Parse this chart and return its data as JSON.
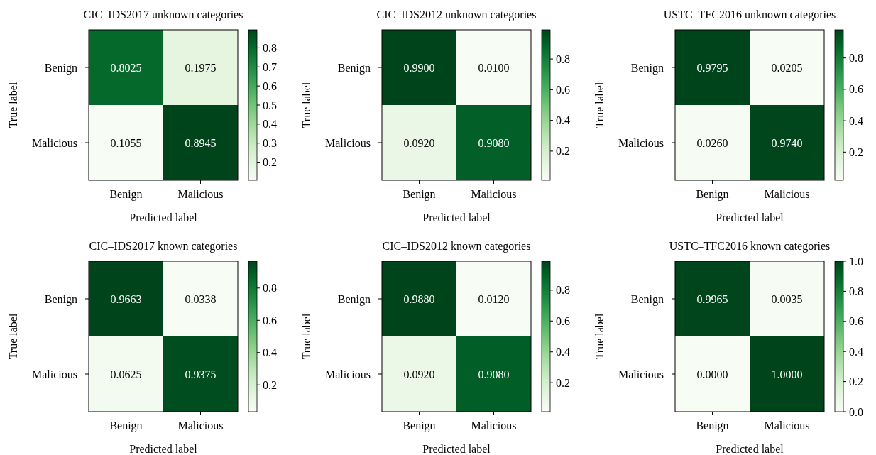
{
  "chart_data": [
    {
      "type": "heatmap",
      "title": "CIC–IDS2017 unknown categories",
      "xlabel": "Predicted label",
      "ylabel": "True label",
      "categories": [
        "Benign",
        "Malicious"
      ],
      "y_categories": [
        "Benign",
        "Malicious"
      ],
      "cells": [
        [
          0.8025,
          0.1975
        ],
        [
          0.1055,
          0.8945
        ]
      ],
      "cell_labels": [
        [
          "0.8025",
          "0.1975"
        ],
        [
          "0.1055",
          "0.8945"
        ]
      ],
      "clim": [
        0.1055,
        0.8945
      ],
      "cticks": [
        0.2,
        0.3,
        0.4,
        0.5,
        0.6,
        0.7,
        0.8
      ]
    },
    {
      "type": "heatmap",
      "title": "CIC–IDS2012 unknown categories",
      "xlabel": "Predicted label",
      "ylabel": "True label",
      "categories": [
        "Benign",
        "Malicious"
      ],
      "y_categories": [
        "Benign",
        "Malicious"
      ],
      "cells": [
        [
          0.99,
          0.01
        ],
        [
          0.092,
          0.908
        ]
      ],
      "cell_labels": [
        [
          "0.9900",
          "0.0100"
        ],
        [
          "0.0920",
          "0.9080"
        ]
      ],
      "clim": [
        0.01,
        0.99
      ],
      "cticks": [
        0.2,
        0.4,
        0.6,
        0.8
      ]
    },
    {
      "type": "heatmap",
      "title": "USTC–TFC2016 unknown categories",
      "xlabel": "Predicted label",
      "ylabel": "True label",
      "categories": [
        "Benign",
        "Malicious"
      ],
      "y_categories": [
        "Benign",
        "Malicious"
      ],
      "cells": [
        [
          0.9795,
          0.0205
        ],
        [
          0.026,
          0.974
        ]
      ],
      "cell_labels": [
        [
          "0.9795",
          "0.0205"
        ],
        [
          "0.0260",
          "0.9740"
        ]
      ],
      "clim": [
        0.0205,
        0.9795
      ],
      "cticks": [
        0.2,
        0.4,
        0.6,
        0.8
      ]
    },
    {
      "type": "heatmap",
      "title": "CIC–IDS2017 known categories",
      "xlabel": "Predicted label",
      "ylabel": "True label",
      "categories": [
        "Benign",
        "Malicious"
      ],
      "y_categories": [
        "Benign",
        "Malicious"
      ],
      "cells": [
        [
          0.9663,
          0.0338
        ],
        [
          0.0625,
          0.9375
        ]
      ],
      "cell_labels": [
        [
          "0.9663",
          "0.0338"
        ],
        [
          "0.0625",
          "0.9375"
        ]
      ],
      "clim": [
        0.0338,
        0.9663
      ],
      "cticks": [
        0.2,
        0.4,
        0.6,
        0.8
      ]
    },
    {
      "type": "heatmap",
      "title": "CIC–IDS2012 known categories",
      "xlabel": "Predicted label",
      "ylabel": "True label",
      "categories": [
        "Benign",
        "Malicious"
      ],
      "y_categories": [
        "Benign",
        "Malicious"
      ],
      "cells": [
        [
          0.988,
          0.012
        ],
        [
          0.092,
          0.908
        ]
      ],
      "cell_labels": [
        [
          "0.9880",
          "0.0120"
        ],
        [
          "0.0920",
          "0.9080"
        ]
      ],
      "clim": [
        0.012,
        0.988
      ],
      "cticks": [
        0.2,
        0.4,
        0.6,
        0.8
      ]
    },
    {
      "type": "heatmap",
      "title": "USTC–TFC2016 known categories",
      "xlabel": "Predicted label",
      "ylabel": "True label",
      "categories": [
        "Benign",
        "Malicious"
      ],
      "y_categories": [
        "Benign",
        "Malicious"
      ],
      "cells": [
        [
          0.9965,
          0.0035
        ],
        [
          0,
          1
        ]
      ],
      "cell_labels": [
        [
          "0.9965",
          "0.0035"
        ],
        [
          "0.0000",
          "1.0000"
        ]
      ],
      "clim": [
        0,
        1
      ],
      "cticks": [
        {
          "value": 0,
          "label": "0.0"
        },
        0.2,
        0.4,
        0.6,
        0.8,
        {
          "value": 1,
          "label": "1.0"
        }
      ]
    }
  ]
}
